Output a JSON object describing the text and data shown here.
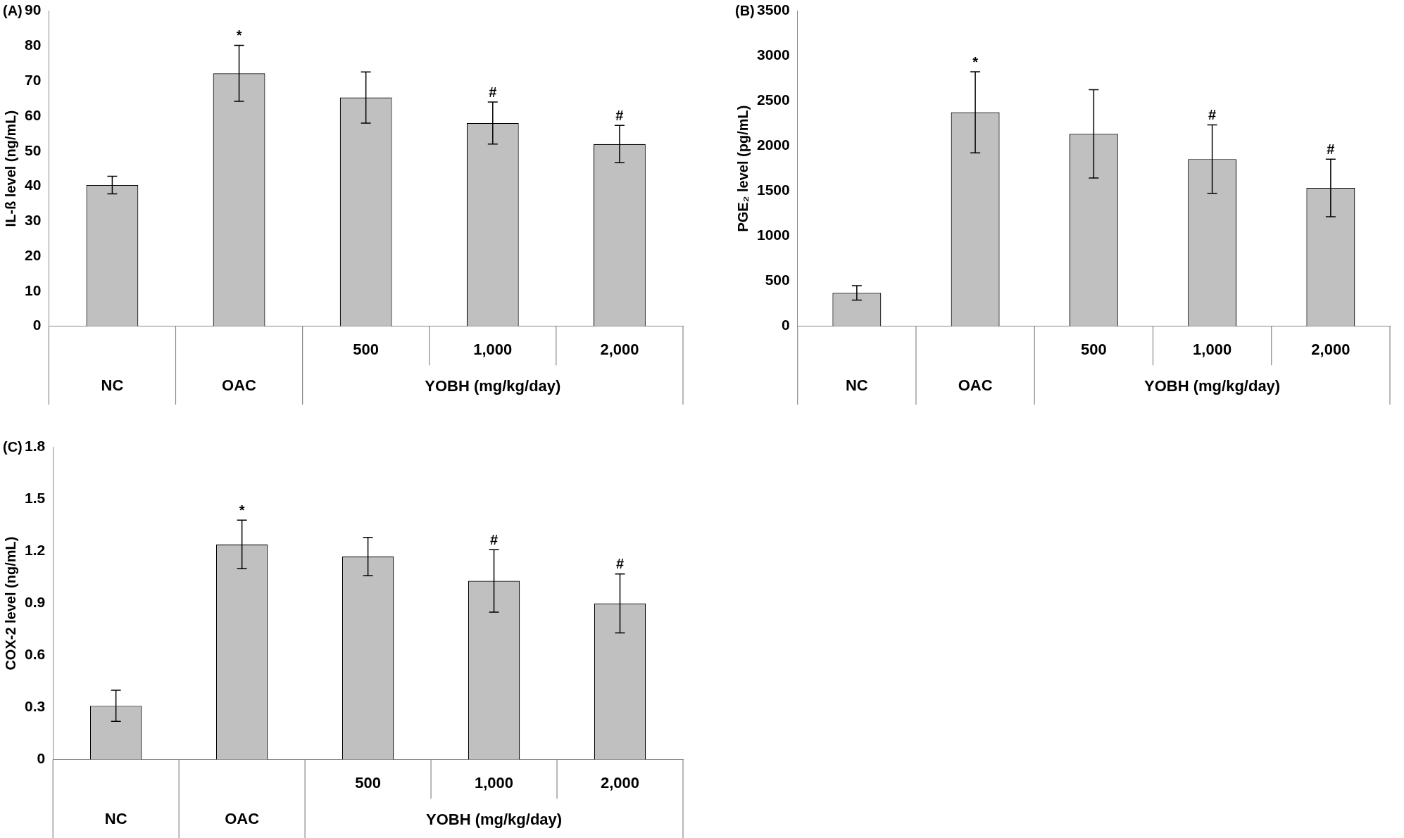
{
  "chart_data": [
    {
      "type": "bar",
      "title": "(A)",
      "ylabel": "IL-ß level (ng/mL)",
      "xlabel": "YOBH (mg/kg/day)",
      "categories": [
        "NC",
        "OAC",
        "500",
        "1,000",
        "2,000"
      ],
      "values": [
        40.3,
        72.2,
        65.3,
        58,
        52
      ],
      "errors": [
        2.5,
        8,
        7.3,
        6,
        5.3
      ],
      "color": "#c0c0c0",
      "ylim": [
        0,
        90
      ],
      "yticks": [
        0,
        10,
        20,
        30,
        40,
        50,
        60,
        70,
        80,
        90
      ],
      "value_labels": [
        null,
        "*",
        null,
        "#",
        "#"
      ]
    },
    {
      "type": "bar",
      "title": "(B)",
      "ylabel": "PGE₂ level (pg/mL)",
      "xlabel": "YOBH (mg/kg/day)",
      "categories": [
        "NC",
        "OAC",
        "500",
        "1,000",
        "2,000"
      ],
      "values": [
        370,
        2375,
        2135,
        1855,
        1535
      ],
      "errors": [
        80,
        450,
        490,
        380,
        320
      ],
      "color": "#c0c0c0",
      "ylim": [
        0,
        3500
      ],
      "yticks": [
        0,
        500,
        1000,
        1500,
        2000,
        2500,
        3000,
        3500
      ],
      "value_labels": [
        null,
        "*",
        null,
        "#",
        "#"
      ]
    },
    {
      "type": "bar",
      "title": "(C)",
      "ylabel": "COX-2 level (ng/mL)",
      "xlabel": "YOBH (mg/kg/day)",
      "categories": [
        "NC",
        "OAC",
        "500",
        "1,000",
        "2,000"
      ],
      "values": [
        0.31,
        1.24,
        1.17,
        1.03,
        0.9
      ],
      "errors": [
        0.09,
        0.14,
        0.11,
        0.18,
        0.17
      ],
      "color": "#c0c0c0",
      "ylim": [
        0,
        1.8
      ],
      "yticks": [
        0,
        0.3,
        0.6,
        0.9,
        1.2,
        1.5,
        1.8
      ],
      "value_labels": [
        null,
        "*",
        null,
        "#",
        "#"
      ]
    }
  ]
}
